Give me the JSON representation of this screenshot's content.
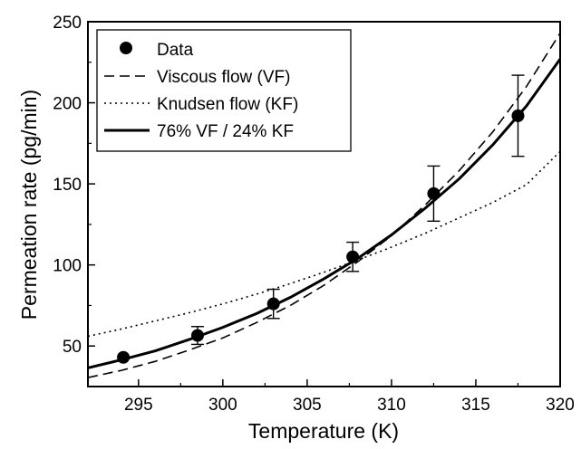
{
  "chart_data": {
    "type": "line",
    "title": "",
    "xlabel": "Temperature (K)",
    "ylabel": "Permeation rate (pg/min)",
    "xlim": [
      292,
      320
    ],
    "ylim": [
      25,
      250
    ],
    "xticks": [
      295,
      300,
      305,
      310,
      315,
      320
    ],
    "yticks": [
      50,
      100,
      150,
      200,
      250
    ],
    "grid": false,
    "legend_position": "top-left",
    "series": [
      {
        "name": "Data",
        "style": "points-with-error-bars",
        "color": "#000000",
        "points": [
          {
            "x": 294.1,
            "y": 43,
            "err_low": 43,
            "err_high": 43
          },
          {
            "x": 298.5,
            "y": 56.5,
            "err_low": 51,
            "err_high": 62
          },
          {
            "x": 303.0,
            "y": 76,
            "err_low": 67,
            "err_high": 85
          },
          {
            "x": 307.7,
            "y": 105,
            "err_low": 96,
            "err_high": 114
          },
          {
            "x": 312.5,
            "y": 144,
            "err_low": 127,
            "err_high": 161
          },
          {
            "x": 317.5,
            "y": 192,
            "err_low": 167,
            "err_high": 217
          }
        ]
      },
      {
        "name": "Viscous flow (VF)",
        "style": "dashed",
        "color": "#000000",
        "x": [
          292,
          294,
          296,
          298,
          300,
          302,
          304,
          306,
          308,
          310,
          312,
          314,
          316,
          318,
          320
        ],
        "y": [
          30.5,
          35,
          40.5,
          47.5,
          55,
          64.5,
          75,
          87.5,
          102,
          118,
          137,
          158,
          182,
          210,
          243
        ]
      },
      {
        "name": "Knudsen flow (KF)",
        "style": "dotted",
        "color": "#000000",
        "x": [
          292,
          294,
          296,
          298,
          300,
          302,
          304,
          306,
          308,
          310,
          312,
          314,
          316,
          318,
          320
        ],
        "y": [
          56,
          60.5,
          65.5,
          70.5,
          76,
          82,
          88.5,
          95.5,
          103,
          111,
          119.5,
          129,
          138.5,
          149.5,
          170
        ]
      },
      {
        "name": "76% VF / 24% KF",
        "style": "solid-thick",
        "color": "#000000",
        "x": [
          292,
          294,
          296,
          298,
          300,
          302,
          304,
          306,
          308,
          310,
          312,
          314,
          316,
          318,
          320
        ],
        "y": [
          36.5,
          41.5,
          47,
          54,
          61.5,
          70,
          80,
          91.5,
          104,
          118.5,
          135,
          153,
          174,
          198,
          227
        ]
      }
    ]
  }
}
